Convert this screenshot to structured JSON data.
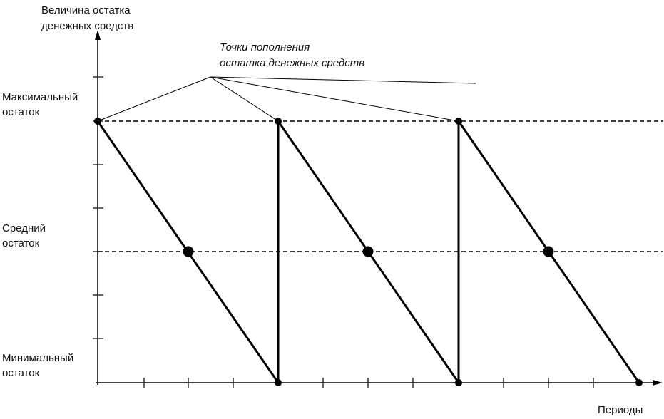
{
  "y_axis_label": [
    "Величина остатка",
    "денежных средств"
  ],
  "annotation": [
    "Точки пополнения",
    "остатка денежных средств"
  ],
  "levels": [
    {
      "label": [
        "Максимальный",
        "остаток"
      ]
    },
    {
      "label": [
        "Средний",
        "остаток"
      ]
    },
    {
      "label": [
        "Минимальный",
        "остаток"
      ]
    }
  ],
  "x_axis_label": "Периоды"
}
